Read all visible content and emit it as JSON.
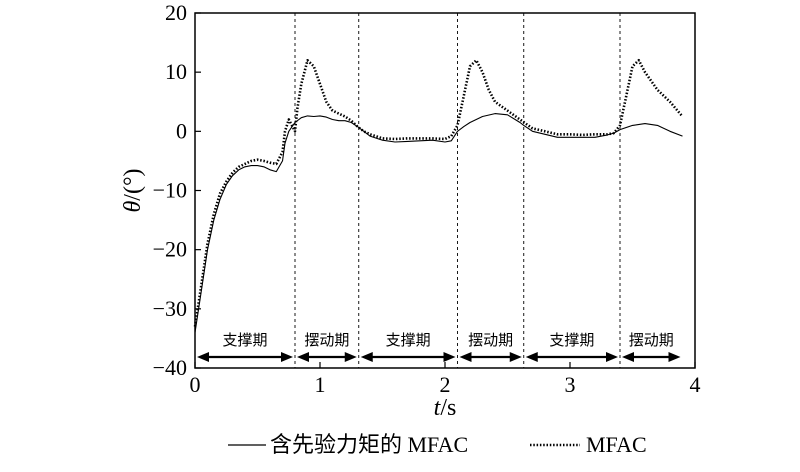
{
  "chart_data": {
    "type": "line",
    "title": "",
    "xlabel_var": "t",
    "xlabel_unit": "/s",
    "ylabel_var": "θ",
    "ylabel_unit": "/(°)",
    "xlim": [
      0,
      4
    ],
    "ylim": [
      -40,
      20
    ],
    "x_ticks": [
      0,
      1,
      2,
      3,
      4
    ],
    "y_ticks": [
      -40,
      -30,
      -20,
      -10,
      0,
      10,
      20
    ],
    "grid": false,
    "legend_placement": "bottom",
    "phase_boundaries": [
      0.8,
      1.31,
      2.1,
      2.63,
      3.4
    ],
    "phases": [
      {
        "label": "支撑期",
        "start": 0,
        "end": 0.8
      },
      {
        "label": "摆动期",
        "start": 0.8,
        "end": 1.31
      },
      {
        "label": "支撑期",
        "start": 1.31,
        "end": 2.1
      },
      {
        "label": "摆动期",
        "start": 2.1,
        "end": 2.63
      },
      {
        "label": "支撑期",
        "start": 2.63,
        "end": 3.4
      },
      {
        "label": "摆动期",
        "start": 3.4,
        "end": 3.9
      }
    ],
    "series": [
      {
        "name": "含先验力矩的 MFAC",
        "style": "solid",
        "color": "#000000",
        "x": [
          0,
          0.05,
          0.1,
          0.15,
          0.2,
          0.25,
          0.3,
          0.35,
          0.4,
          0.45,
          0.5,
          0.55,
          0.6,
          0.65,
          0.7,
          0.72,
          0.75,
          0.8,
          0.85,
          0.9,
          0.95,
          1.0,
          1.05,
          1.1,
          1.15,
          1.2,
          1.25,
          1.3,
          1.35,
          1.4,
          1.5,
          1.6,
          1.7,
          1.8,
          1.9,
          2.0,
          2.05,
          2.1,
          2.15,
          2.2,
          2.3,
          2.4,
          2.5,
          2.6,
          2.63,
          2.7,
          2.8,
          2.9,
          3.0,
          3.1,
          3.2,
          3.3,
          3.35,
          3.4,
          3.5,
          3.6,
          3.7,
          3.8,
          3.9
        ],
        "y": [
          -34,
          -27,
          -20,
          -15,
          -11.5,
          -9,
          -7.5,
          -6.5,
          -6,
          -5.8,
          -5.8,
          -6,
          -6.5,
          -6.8,
          -5,
          -2,
          0,
          1.5,
          2.3,
          2.6,
          2.5,
          2.6,
          2.4,
          2,
          1.8,
          1.8,
          1.5,
          0.8,
          0,
          -0.8,
          -1.5,
          -1.8,
          -1.7,
          -1.6,
          -1.5,
          -1.8,
          -1.6,
          0,
          0.8,
          1.5,
          2.5,
          3,
          2.8,
          1.5,
          1,
          0,
          -0.5,
          -1,
          -1,
          -1,
          -1,
          -0.6,
          -0.3,
          0.3,
          1,
          1.3,
          1,
          0,
          -0.8
        ]
      },
      {
        "name": "MFAC",
        "style": "dotted",
        "color": "#000000",
        "x": [
          0,
          0.05,
          0.1,
          0.15,
          0.2,
          0.25,
          0.3,
          0.35,
          0.4,
          0.45,
          0.5,
          0.55,
          0.6,
          0.65,
          0.7,
          0.72,
          0.75,
          0.8,
          0.82,
          0.85,
          0.9,
          0.95,
          1.0,
          1.05,
          1.1,
          1.15,
          1.2,
          1.25,
          1.3,
          1.35,
          1.4,
          1.5,
          1.6,
          1.7,
          1.8,
          1.9,
          2.0,
          2.05,
          2.1,
          2.15,
          2.2,
          2.25,
          2.3,
          2.35,
          2.4,
          2.5,
          2.6,
          2.7,
          2.8,
          2.9,
          3.0,
          3.1,
          3.2,
          3.3,
          3.35,
          3.4,
          3.45,
          3.5,
          3.55,
          3.6,
          3.7,
          3.8,
          3.9
        ],
        "y": [
          -33,
          -26,
          -19,
          -14,
          -10.5,
          -8.5,
          -7,
          -6,
          -5.5,
          -5,
          -4.8,
          -5,
          -5.3,
          -5.5,
          -3.5,
          0,
          2,
          0,
          4,
          8,
          12,
          11,
          8,
          5,
          3.5,
          3,
          2.5,
          1.8,
          0.8,
          0,
          -0.5,
          -1.2,
          -1.3,
          -1.2,
          -1.2,
          -1.2,
          -1.3,
          -0.8,
          1,
          6,
          11,
          12,
          10,
          7,
          5,
          3.5,
          2,
          0.5,
          0,
          -0.5,
          -0.5,
          -0.6,
          -0.5,
          -0.5,
          -0.3,
          1,
          6,
          11,
          12,
          10,
          7,
          5,
          2.5
        ]
      }
    ]
  }
}
